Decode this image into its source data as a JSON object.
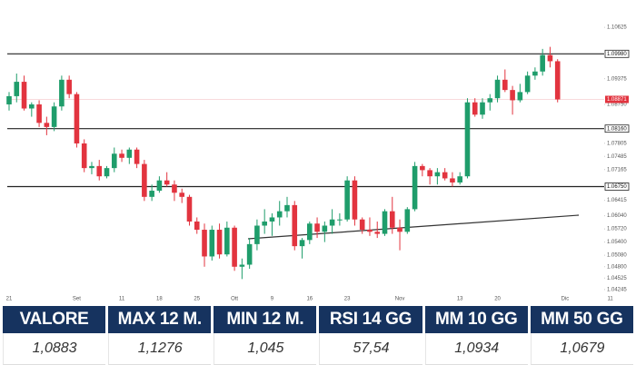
{
  "chart_data": {
    "type": "candlestick",
    "categories": [
      "21",
      null,
      null,
      null,
      null,
      null,
      null,
      null,
      null,
      "Set",
      null,
      null,
      null,
      null,
      null,
      "11",
      null,
      null,
      null,
      null,
      "18",
      null,
      null,
      null,
      null,
      "25",
      null,
      null,
      null,
      null,
      "Ott",
      null,
      null,
      null,
      null,
      "9",
      null,
      null,
      null,
      null,
      "16",
      null,
      null,
      null,
      null,
      "23",
      null,
      null,
      null,
      null,
      null,
      null,
      "Nov",
      null,
      null,
      null,
      null,
      null,
      null,
      null,
      "13",
      null,
      null,
      null,
      null,
      "20",
      null,
      null,
      null,
      null,
      null,
      null,
      null,
      null,
      "Dic",
      null,
      null,
      null,
      null,
      null,
      "11"
    ],
    "open": [
      1.0875,
      1.0895,
      1.093,
      1.0865,
      1.0875,
      1.083,
      1.082,
      1.087,
      1.0935,
      1.09,
      1.078,
      1.072,
      1.0725,
      1.07,
      1.072,
      1.0755,
      1.0745,
      1.0765,
      1.073,
      1.065,
      1.0665,
      1.069,
      1.068,
      1.066,
      1.065,
      1.059,
      1.057,
      1.0505,
      1.057,
      1.051,
      1.0575,
      1.048,
      1.0485,
      1.0535,
      1.058,
      1.059,
      1.06,
      1.0615,
      1.063,
      1.053,
      1.0545,
      1.0585,
      1.0565,
      1.058,
      1.0595,
      1.0595,
      1.069,
      1.0595,
      1.057,
      1.0565,
      1.056,
      1.0615,
      1.0575,
      1.0565,
      1.062,
      1.0725,
      1.0715,
      1.07,
      1.071,
      1.0695,
      1.0685,
      1.07,
      1.088,
      1.085,
      1.088,
      1.089,
      1.0935,
      1.091,
      1.0885,
      1.0905,
      1.0945,
      1.0955,
      1.0995,
      1.098,
      null,
      null,
      null,
      null,
      null,
      null,
      null
    ],
    "high": [
      1.0905,
      1.095,
      1.0945,
      1.088,
      1.0885,
      1.0845,
      1.088,
      1.0945,
      1.0945,
      1.0905,
      1.079,
      1.0735,
      1.074,
      1.0725,
      1.077,
      1.0765,
      1.077,
      1.077,
      1.074,
      1.068,
      1.07,
      1.071,
      1.069,
      1.067,
      1.0655,
      1.06,
      1.0585,
      1.058,
      1.0585,
      1.059,
      1.058,
      1.05,
      1.055,
      1.0595,
      1.062,
      1.061,
      1.064,
      1.065,
      1.064,
      1.055,
      1.059,
      1.06,
      1.059,
      1.062,
      1.061,
      1.07,
      1.07,
      1.06,
      1.06,
      1.059,
      1.062,
      1.065,
      1.0595,
      1.0625,
      1.0735,
      1.073,
      1.072,
      1.072,
      1.072,
      1.071,
      1.071,
      1.089,
      1.089,
      1.089,
      1.09,
      1.0945,
      1.096,
      1.092,
      1.0925,
      1.0955,
      1.0965,
      1.101,
      1.1015,
      1.0985,
      null,
      null,
      null,
      null,
      null,
      null,
      null
    ],
    "low": [
      1.086,
      1.088,
      1.086,
      1.0845,
      1.082,
      1.08,
      1.081,
      1.086,
      1.089,
      1.077,
      1.071,
      1.0705,
      1.069,
      1.0695,
      1.071,
      1.0735,
      1.073,
      1.072,
      1.064,
      1.064,
      1.066,
      1.0675,
      1.064,
      1.0635,
      1.058,
      1.056,
      1.048,
      1.0495,
      1.05,
      1.0505,
      1.047,
      1.045,
      1.0475,
      1.052,
      1.056,
      1.0555,
      1.058,
      1.06,
      1.052,
      1.05,
      1.0535,
      1.055,
      1.054,
      1.056,
      1.058,
      1.059,
      1.058,
      1.056,
      1.0555,
      1.055,
      1.0555,
      1.056,
      1.052,
      1.056,
      1.0615,
      1.07,
      1.068,
      1.068,
      1.069,
      1.0675,
      1.068,
      1.0695,
      1.0845,
      1.084,
      1.086,
      1.088,
      1.0905,
      1.085,
      1.088,
      1.09,
      1.0935,
      1.0945,
      1.0965,
      1.088,
      null,
      null,
      null,
      null,
      null,
      null,
      null
    ],
    "close": [
      1.0895,
      1.093,
      1.0865,
      1.0875,
      1.083,
      1.082,
      1.087,
      1.0935,
      1.09,
      1.078,
      1.072,
      1.0725,
      1.07,
      1.072,
      1.0755,
      1.0745,
      1.0765,
      1.073,
      1.065,
      1.0665,
      1.069,
      1.068,
      1.066,
      1.065,
      1.059,
      1.057,
      1.0505,
      1.057,
      1.051,
      1.0575,
      1.048,
      1.0485,
      1.0535,
      1.058,
      1.059,
      1.06,
      1.0615,
      1.063,
      1.053,
      1.0545,
      1.0585,
      1.0565,
      1.058,
      1.0595,
      1.0595,
      1.069,
      1.0595,
      1.057,
      1.0565,
      1.056,
      1.0615,
      1.0575,
      1.0565,
      1.062,
      1.0725,
      1.0715,
      1.07,
      1.071,
      1.0695,
      1.0685,
      1.07,
      1.088,
      1.085,
      1.088,
      1.089,
      1.0935,
      1.091,
      1.0885,
      1.0905,
      1.0945,
      1.0955,
      1.0995,
      1.098,
      1.08871,
      null,
      null,
      null,
      null,
      null,
      null,
      null
    ],
    "up_color": "#1f9d6b",
    "down_color": "#e2343f",
    "last_price": 1.08871,
    "levels": [
      1.0998,
      1.0816,
      1.0675
    ],
    "ylim": [
      1.0411,
      1.1129
    ],
    "yticks": [
      1.10625,
      {
        "value": 1.0998,
        "label": "1.09980"
      },
      1.09375,
      {
        "value": 1.0875,
        "label": "1.08750"
      },
      {
        "value": 1.0816,
        "label": "1.08160"
      },
      1.07805,
      1.07485,
      1.07165,
      {
        "value": 1.0675,
        "label": "1.06750"
      },
      1.06415,
      {
        "value": 1.0604,
        "label": "1.06040"
      },
      {
        "value": 1.0572,
        "label": "1.05720"
      },
      {
        "value": 1.054,
        "label": "1.05400"
      },
      {
        "value": 1.0508,
        "label": "1.05080"
      },
      {
        "value": 1.048,
        "label": "1.04800"
      },
      1.04525,
      1.04245
    ]
  },
  "table": {
    "headers": [
      "VALORE",
      "MAX 12 M.",
      "MIN 12 M.",
      "RSI 14 GG",
      "MM 10 GG",
      "MM 50 GG"
    ],
    "rows": [
      [
        "1,0883",
        "1,1276",
        "1,045",
        "57,54",
        "1,0934",
        "1,0679"
      ]
    ]
  }
}
